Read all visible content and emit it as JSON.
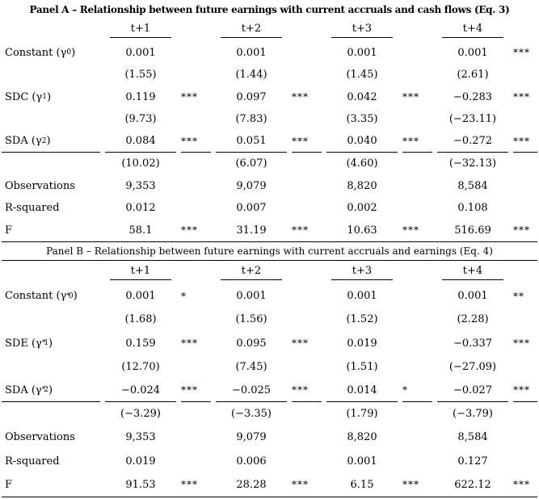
{
  "page": {
    "background_color": "#ffffff",
    "text_color": "#000000",
    "rule_color": "#000000"
  },
  "panels": [
    {
      "id": "panel-a",
      "title": "Panel A – Relationship between future earnings with current accruals and cash flows (Eq. 3)",
      "columns": [
        "t+1",
        "t+2",
        "t+3",
        "t+4"
      ],
      "rows": [
        {
          "type": "coef",
          "label": {
            "pre": "Constant (",
            "sym": "γ",
            "sup": "",
            "sub": "0",
            "post": ")"
          },
          "values": [
            "0.001",
            "0.001",
            "0.001",
            "0.001"
          ],
          "stars": [
            "",
            "",
            "",
            "***"
          ]
        },
        {
          "type": "tstat",
          "values": [
            "(1.55)",
            "(1.44)",
            "(1.45)",
            "(2.61)"
          ]
        },
        {
          "type": "coef",
          "label": {
            "pre": "SDC (",
            "sym": "γ",
            "sup": "",
            "sub": "1",
            "post": ")"
          },
          "values": [
            "0.119",
            "0.097",
            "0.042",
            "−0.283"
          ],
          "stars": [
            "***",
            "***",
            "***",
            "***"
          ]
        },
        {
          "type": "tstat",
          "values": [
            "(9.73)",
            "(7.83)",
            "(3.35)",
            "(−23.11)"
          ]
        },
        {
          "type": "coef",
          "underline": true,
          "label": {
            "pre": "SDA (",
            "sym": "γ",
            "sup": "",
            "sub": "2",
            "post": ")"
          },
          "values": [
            "0.084",
            "0.051",
            "0.040",
            "−0.272"
          ],
          "stars": [
            "***",
            "***",
            "***",
            "***"
          ]
        },
        {
          "type": "tstat",
          "values": [
            "(10.02)",
            "(6.07)",
            "(4.60)",
            "(−32.13)"
          ]
        },
        {
          "type": "stat",
          "label_text": "Observations",
          "values": [
            "9,353",
            "9,079",
            "8,820",
            "8,584"
          ],
          "stars": [
            "",
            "",
            "",
            ""
          ]
        },
        {
          "type": "stat",
          "label_text": "R-squared",
          "values": [
            "0.012",
            "0.007",
            "0.002",
            "0.108"
          ],
          "stars": [
            "",
            "",
            "",
            ""
          ]
        },
        {
          "type": "stat",
          "label_text": "F",
          "values": [
            "58.1",
            "31.19",
            "10.63",
            "516.69"
          ],
          "stars": [
            "***",
            "***",
            "***",
            "***"
          ]
        }
      ]
    },
    {
      "id": "panel-b",
      "title": "Panel B – Relationship between future earnings with current accruals and earnings (Eq. 4)",
      "columns": [
        "t+1",
        "t+2",
        "t+3",
        "t+4"
      ],
      "rows": [
        {
          "type": "coef",
          "label": {
            "pre": "Constant (",
            "sym": "γ",
            "sup": "*",
            "sub": "0",
            "post": ")"
          },
          "values": [
            "0.001",
            "0.001",
            "0.001",
            "0.001"
          ],
          "stars": [
            "*",
            "",
            "",
            "**"
          ]
        },
        {
          "type": "tstat",
          "values": [
            "(1.68)",
            "(1.56)",
            "(1.52)",
            "(2.28)"
          ]
        },
        {
          "type": "coef",
          "label": {
            "pre": "SDE (",
            "sym": "γ",
            "sup": "*",
            "sub": "1",
            "post": ")"
          },
          "values": [
            "0.159",
            "0.095",
            "0.019",
            "−0.337"
          ],
          "stars": [
            "***",
            "***",
            "",
            "***"
          ]
        },
        {
          "type": "tstat",
          "values": [
            "(12.70)",
            "(7.45)",
            "(1.51)",
            "(−27.09)"
          ]
        },
        {
          "type": "coef",
          "underline": true,
          "label": {
            "pre": "SDA (",
            "sym": "γ",
            "sup": "*",
            "sub": "2",
            "post": ")"
          },
          "values": [
            "−0.024",
            "−0.025",
            "0.014",
            "−0.027"
          ],
          "stars": [
            "***",
            "***",
            "*",
            "***"
          ]
        },
        {
          "type": "tstat",
          "values": [
            "(−3.29)",
            "(−3.35)",
            "(1.79)",
            "(−3.79)"
          ]
        },
        {
          "type": "stat",
          "label_text": "Observations",
          "values": [
            "9,353",
            "9,079",
            "8,820",
            "8,584"
          ],
          "stars": [
            "",
            "",
            "",
            ""
          ]
        },
        {
          "type": "stat",
          "label_text": "R-squared",
          "values": [
            "0.019",
            "0.006",
            "0.001",
            "0.127"
          ],
          "stars": [
            "",
            "",
            "",
            ""
          ]
        },
        {
          "type": "stat",
          "label_text": "F",
          "values": [
            "91.53",
            "28.28",
            "6.15",
            "622.12"
          ],
          "stars": [
            "***",
            "***",
            "***",
            "***"
          ]
        }
      ]
    }
  ]
}
